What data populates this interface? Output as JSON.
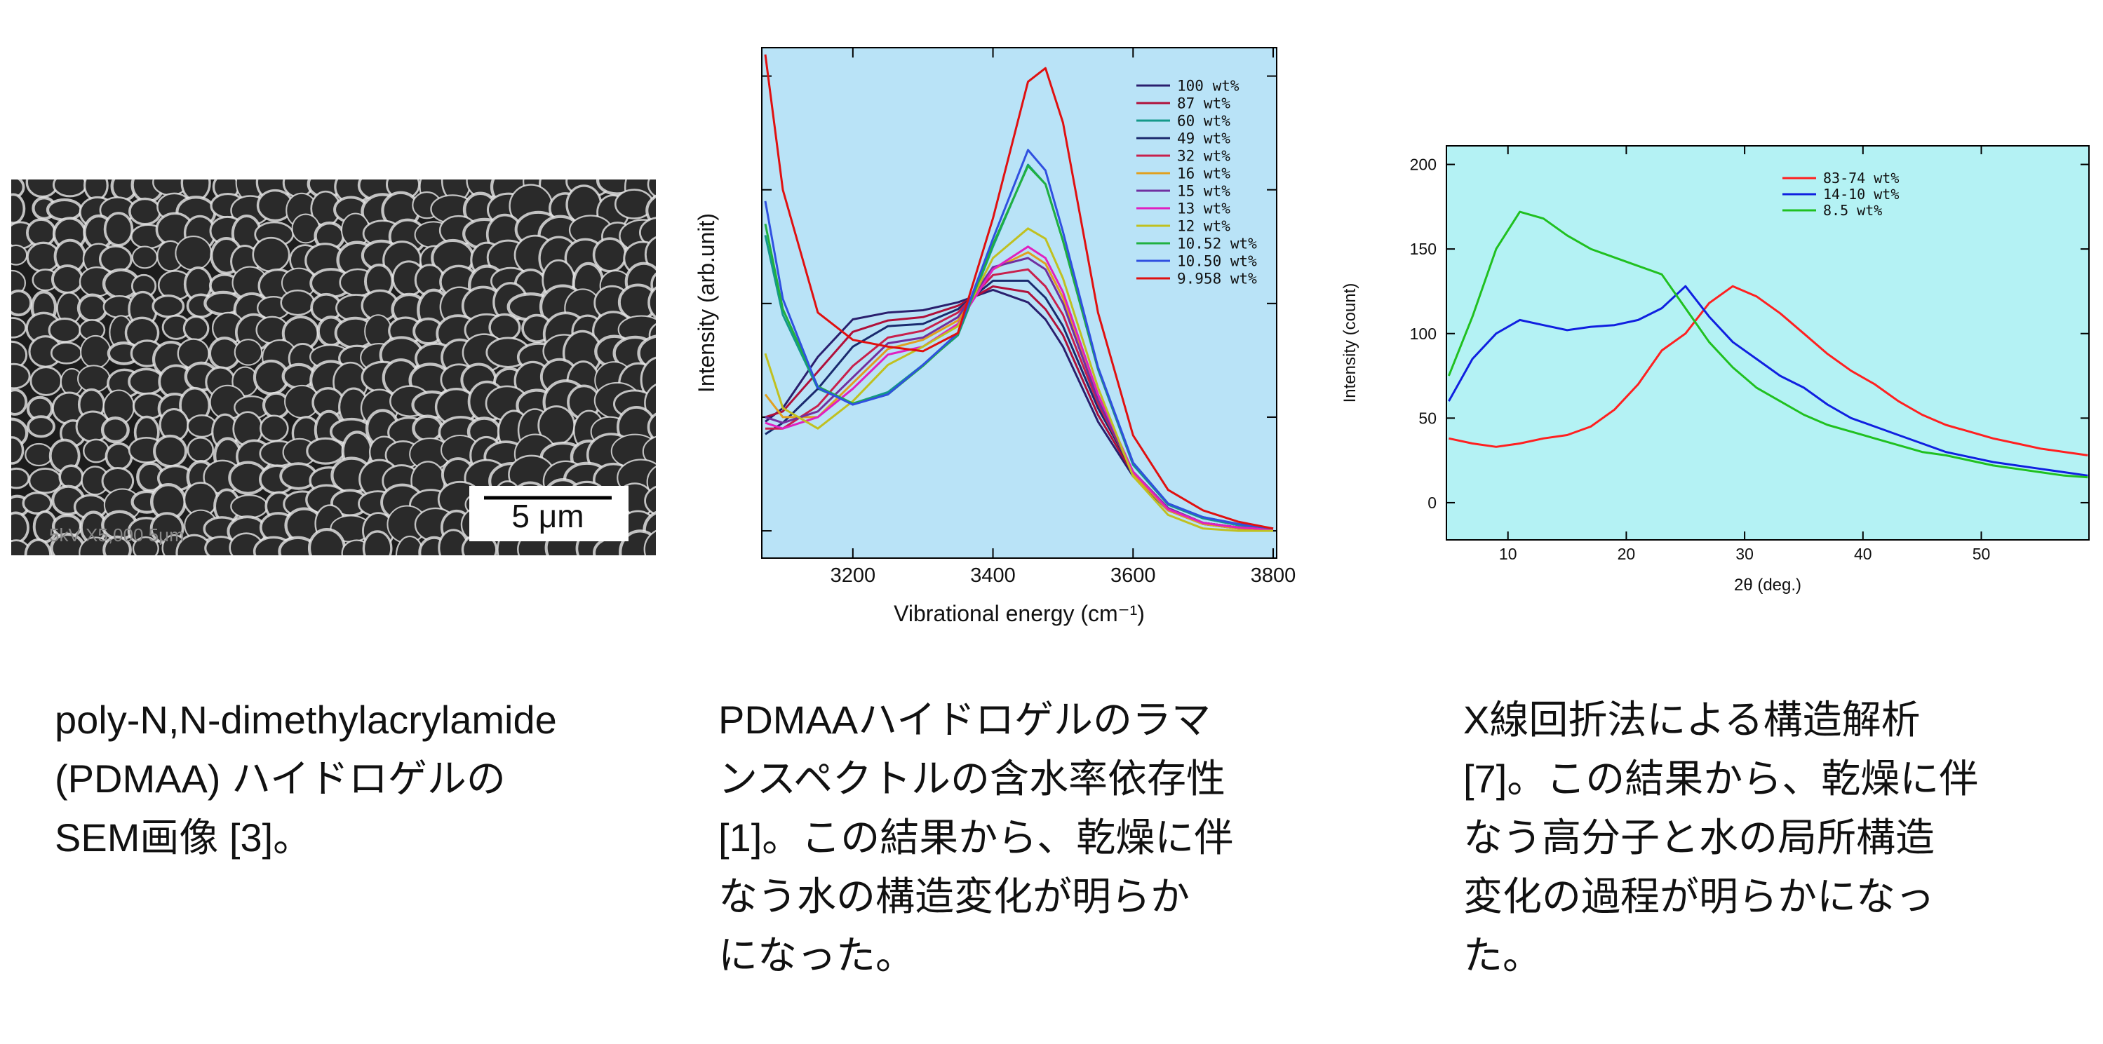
{
  "sem_image": {
    "scale_bar": "5 μm",
    "footer": "5kV   X5,000   5μm"
  },
  "chart_data": [
    {
      "type": "line",
      "xlabel": "Vibrational energy (cm⁻¹)",
      "ylabel": "Intensity (arb.unit)",
      "x": [
        3075,
        3100,
        3150,
        3200,
        3250,
        3300,
        3350,
        3400,
        3450,
        3475,
        3500,
        3550,
        3600,
        3650,
        3700,
        3750,
        3800
      ],
      "series": [
        {
          "name": "100 wt%",
          "color": "#2a1f6e",
          "values": [
            0.96,
            1.08,
            1.53,
            1.86,
            1.92,
            1.94,
            2.01,
            2.12,
            2.01,
            1.86,
            1.62,
            0.96,
            0.48,
            0.18,
            0.06,
            0.02,
            0
          ]
        },
        {
          "name": "87 wt%",
          "color": "#b0103a",
          "values": [
            1.0,
            1.05,
            1.4,
            1.75,
            1.85,
            1.88,
            1.98,
            2.15,
            2.1,
            1.95,
            1.72,
            1.02,
            0.5,
            0.2,
            0.07,
            0.03,
            0.01
          ]
        },
        {
          "name": "60 wt%",
          "color": "#14998a",
          "values": [
            2.6,
            1.9,
            1.25,
            1.12,
            1.22,
            1.46,
            1.72,
            2.5,
            3.22,
            3.05,
            2.55,
            1.42,
            0.58,
            0.23,
            0.11,
            0.05,
            0.02
          ]
        },
        {
          "name": "49 wt%",
          "color": "#1a2a6e",
          "values": [
            0.85,
            0.95,
            1.25,
            1.62,
            1.8,
            1.82,
            1.95,
            2.2,
            2.2,
            2.05,
            1.8,
            1.08,
            0.52,
            0.2,
            0.07,
            0.03,
            0.01
          ]
        },
        {
          "name": "32 wt%",
          "color": "#c8204c",
          "values": [
            0.9,
            0.9,
            1.1,
            1.45,
            1.7,
            1.76,
            1.92,
            2.25,
            2.3,
            2.15,
            1.9,
            1.12,
            0.52,
            0.2,
            0.07,
            0.03,
            0.01
          ]
        },
        {
          "name": "16 wt%",
          "color": "#e0a020",
          "values": [
            1.2,
            1.0,
            1.0,
            1.3,
            1.6,
            1.68,
            1.85,
            2.3,
            2.45,
            2.35,
            2.05,
            1.18,
            0.5,
            0.18,
            0.06,
            0.02,
            0.01
          ]
        },
        {
          "name": "15 wt%",
          "color": "#7030a0",
          "values": [
            1.0,
            0.95,
            1.05,
            1.35,
            1.65,
            1.7,
            1.88,
            2.32,
            2.4,
            2.3,
            2.0,
            1.15,
            0.52,
            0.2,
            0.07,
            0.03,
            0.01
          ]
        },
        {
          "name": "13 wt%",
          "color": "#e020c0",
          "values": [
            0.95,
            0.9,
            1.0,
            1.25,
            1.55,
            1.62,
            1.82,
            2.3,
            2.5,
            2.4,
            2.1,
            1.2,
            0.52,
            0.19,
            0.07,
            0.03,
            0.01
          ]
        },
        {
          "name": "12 wt%",
          "color": "#c0c020",
          "values": [
            1.56,
            1.08,
            0.9,
            1.14,
            1.46,
            1.62,
            1.8,
            2.4,
            2.66,
            2.57,
            2.22,
            1.26,
            0.48,
            0.14,
            0.02,
            0,
            0
          ]
        },
        {
          "name": "10.52 wt%",
          "color": "#20b040",
          "values": [
            2.7,
            1.95,
            1.27,
            1.12,
            1.2,
            1.45,
            1.73,
            2.52,
            3.21,
            3.05,
            2.55,
            1.43,
            0.6,
            0.24,
            0.12,
            0.06,
            0.02
          ]
        },
        {
          "name": "10.50 wt%",
          "color": "#3050e0",
          "values": [
            2.9,
            2.04,
            1.26,
            1.11,
            1.2,
            1.46,
            1.74,
            2.57,
            3.35,
            3.17,
            2.63,
            1.44,
            0.6,
            0.24,
            0.12,
            0.06,
            0.02
          ]
        },
        {
          "name": "9.958 wt%",
          "color": "#e01010",
          "values": [
            4.19,
            3.0,
            1.92,
            1.68,
            1.62,
            1.58,
            1.74,
            2.75,
            3.95,
            4.07,
            3.59,
            1.92,
            0.84,
            0.36,
            0.18,
            0.08,
            0.02
          ]
        }
      ],
      "xlim": [
        3070,
        3805
      ],
      "ylim": [
        -0.24,
        4.25
      ],
      "xticks": [
        3200,
        3400,
        3600,
        3800
      ],
      "yticks": [
        0,
        1,
        2,
        3,
        4
      ],
      "show_ytick_labels": false,
      "legend": "top-right",
      "background": "#b9e3f7"
    },
    {
      "type": "line",
      "xlabel": "2θ (deg.)",
      "ylabel": "Intensity (count)",
      "x": [
        5,
        7,
        9,
        11,
        13,
        15,
        17,
        19,
        21,
        23,
        25,
        27,
        29,
        31,
        33,
        35,
        37,
        39,
        41,
        43,
        45,
        47,
        49,
        51,
        53,
        55,
        57,
        59
      ],
      "series": [
        {
          "name": "83-74 wt%",
          "color": "#ff2020",
          "values": [
            38,
            35,
            33,
            35,
            38,
            40,
            45,
            55,
            70,
            90,
            100,
            118,
            128,
            122,
            112,
            100,
            88,
            78,
            70,
            60,
            52,
            46,
            42,
            38,
            35,
            32,
            30,
            28
          ]
        },
        {
          "name": "14-10 wt%",
          "color": "#1020e0",
          "values": [
            60,
            85,
            100,
            108,
            105,
            102,
            104,
            105,
            108,
            115,
            128,
            110,
            95,
            85,
            75,
            68,
            58,
            50,
            45,
            40,
            35,
            30,
            27,
            24,
            22,
            20,
            18,
            16
          ]
        },
        {
          "name": "8.5 wt%",
          "color": "#20c020",
          "values": [
            75,
            110,
            150,
            172,
            168,
            158,
            150,
            145,
            140,
            135,
            115,
            95,
            80,
            68,
            60,
            52,
            46,
            42,
            38,
            34,
            30,
            28,
            25,
            22,
            20,
            18,
            16,
            15
          ]
        }
      ],
      "xlim": [
        4.8,
        59.1
      ],
      "ylim": [
        -22,
        211
      ],
      "xticks": [
        10,
        20,
        30,
        40,
        50
      ],
      "yticks": [
        0,
        50,
        100,
        150,
        200
      ],
      "show_ytick_labels": true,
      "legend": "top-right",
      "background": "#b4f2f4"
    }
  ],
  "captions": [
    {
      "lines": [
        "poly-N,N-dimethylacrylamide",
        "(PDMAA)  ハイドロゲルの",
        "SEM画像 [3]。"
      ]
    },
    {
      "lines": [
        "PDMAAハイドロゲルのラマ",
        "ンスペクトルの含水率依存性",
        "[1]。この結果から、乾燥に伴",
        "なう水の構造変化が明らか",
        "になった。"
      ]
    },
    {
      "lines": [
        "X線回折法による構造解析",
        "[7]。この結果から、乾燥に伴",
        "なう高分子と水の局所構造",
        "変化の過程が明らかになっ",
        "た。"
      ]
    }
  ]
}
